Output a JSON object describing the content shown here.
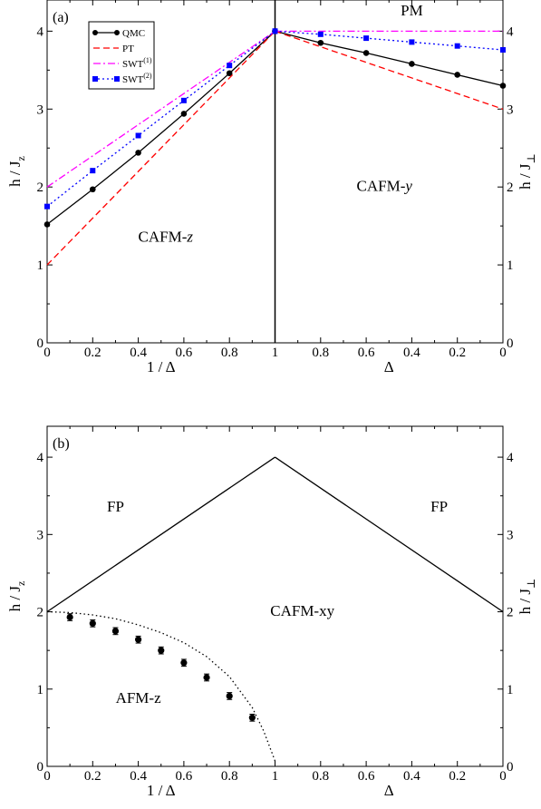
{
  "chart_data": [
    {
      "type": "line",
      "panel_label": "(a)",
      "xlabel_left": "1 / Δ",
      "xlabel_right": "Δ",
      "ylabel_left": "h / J",
      "ylabel_left_sub": "z",
      "ylabel_right": "h / J",
      "ylabel_right_sub": "⊥",
      "x_ticks_left": [
        "0",
        "0.2",
        "0.4",
        "0.6",
        "0.8",
        "1"
      ],
      "x_ticks_right": [
        "0.8",
        "0.6",
        "0.4",
        "0.2",
        "0"
      ],
      "y_ticks": [
        "0",
        "1",
        "2",
        "3",
        "4"
      ],
      "ylim": [
        0,
        4.4
      ],
      "legend": {
        "position": "top-left",
        "entries": [
          {
            "label": "QMC",
            "color": "#000000"
          },
          {
            "label": "PT",
            "color": "#ff0000"
          },
          {
            "label": "SWT",
            "sup": "(1)",
            "color": "#ff00ff"
          },
          {
            "label": "SWT",
            "sup": "(2)",
            "color": "#0000ff"
          }
        ]
      },
      "regions": [
        {
          "text": "PM",
          "u": 0.38,
          "h": 3.95
        },
        {
          "text": "PM",
          "u": 1.6,
          "h": 4.2
        },
        {
          "text": "CAFM-",
          "italic": "z",
          "u": 0.52,
          "h": 1.3
        },
        {
          "text": "CAFM-",
          "italic": "y",
          "u": 1.48,
          "h": 1.95
        }
      ],
      "series": [
        {
          "name": "QMC",
          "color": "#000000",
          "style": "solid-markers",
          "left": [
            [
              0,
              1.52
            ],
            [
              0.2,
              1.97
            ],
            [
              0.4,
              2.44
            ],
            [
              0.6,
              2.94
            ],
            [
              0.8,
              3.46
            ],
            [
              1,
              4.0
            ]
          ],
          "right": [
            [
              1,
              4.0
            ],
            [
              0.8,
              3.85
            ],
            [
              0.6,
              3.72
            ],
            [
              0.4,
              3.58
            ],
            [
              0.2,
              3.44
            ],
            [
              0,
              3.3
            ]
          ]
        },
        {
          "name": "PT",
          "color": "#ff0000",
          "style": "dashed",
          "left": [
            [
              0,
              1.0
            ],
            [
              1,
              4.0
            ]
          ],
          "right": [
            [
              1,
              4.0
            ],
            [
              0,
              3.0
            ]
          ]
        },
        {
          "name": "SWT(1)",
          "color": "#ff00ff",
          "style": "dashdot",
          "left": [
            [
              0,
              2.0
            ],
            [
              1,
              4.0
            ]
          ],
          "right": [
            [
              1,
              4.0
            ],
            [
              0,
              4.0
            ]
          ]
        },
        {
          "name": "SWT(2)",
          "color": "#0000ff",
          "style": "dotted-squares",
          "left": [
            [
              0,
              1.75
            ],
            [
              0.2,
              2.21
            ],
            [
              0.4,
              2.66
            ],
            [
              0.6,
              3.11
            ],
            [
              0.8,
              3.56
            ],
            [
              1,
              4.0
            ]
          ],
          "right": [
            [
              1,
              4.0
            ],
            [
              0.8,
              3.96
            ],
            [
              0.6,
              3.91
            ],
            [
              0.4,
              3.86
            ],
            [
              0.2,
              3.81
            ],
            [
              0,
              3.76
            ]
          ]
        }
      ]
    },
    {
      "type": "line",
      "panel_label": "(b)",
      "xlabel_left": "1 / Δ",
      "xlabel_right": "Δ",
      "ylabel_left": "h / J",
      "ylabel_left_sub": "z",
      "ylabel_right": "h / J",
      "ylabel_right_sub": "⊥",
      "x_ticks_left": [
        "0",
        "0.2",
        "0.4",
        "0.6",
        "0.8",
        "1"
      ],
      "x_ticks_right": [
        "0.8",
        "0.6",
        "0.4",
        "0.2",
        "0"
      ],
      "y_ticks": [
        "0",
        "1",
        "2",
        "3",
        "4"
      ],
      "ylim": [
        0,
        4.4
      ],
      "regions": [
        {
          "text": "FP",
          "u": 0.3,
          "h": 3.3
        },
        {
          "text": "FP",
          "u": 1.72,
          "h": 3.3
        },
        {
          "text": "CAFM-xy",
          "u": 1.12,
          "h": 1.95
        },
        {
          "text": "AFM-z",
          "u": 0.4,
          "h": 0.82
        }
      ],
      "series": [
        {
          "name": "boundary",
          "color": "#000000",
          "style": "solid",
          "left": [
            [
              0,
              2.0
            ],
            [
              1,
              4.0
            ]
          ],
          "right": [
            [
              1,
              4.0
            ],
            [
              0,
              2.0
            ]
          ]
        },
        {
          "name": "fit",
          "color": "#000000",
          "style": "dotted-curve",
          "left": [
            [
              0,
              2.0
            ],
            [
              0.1,
              1.99
            ],
            [
              0.2,
              1.96
            ],
            [
              0.3,
              1.91
            ],
            [
              0.4,
              1.83
            ],
            [
              0.5,
              1.73
            ],
            [
              0.6,
              1.6
            ],
            [
              0.7,
              1.42
            ],
            [
              0.8,
              1.16
            ],
            [
              0.9,
              0.76
            ],
            [
              0.95,
              0.46
            ],
            [
              1,
              0.07
            ]
          ]
        },
        {
          "name": "QMC",
          "color": "#000000",
          "style": "errorbars",
          "left": [
            [
              0.1,
              1.93
            ],
            [
              0.2,
              1.85
            ],
            [
              0.3,
              1.75
            ],
            [
              0.4,
              1.64
            ],
            [
              0.5,
              1.5
            ],
            [
              0.6,
              1.34
            ],
            [
              0.7,
              1.15
            ],
            [
              0.8,
              0.91
            ],
            [
              0.9,
              0.63
            ]
          ],
          "err": 0.045
        }
      ]
    }
  ]
}
